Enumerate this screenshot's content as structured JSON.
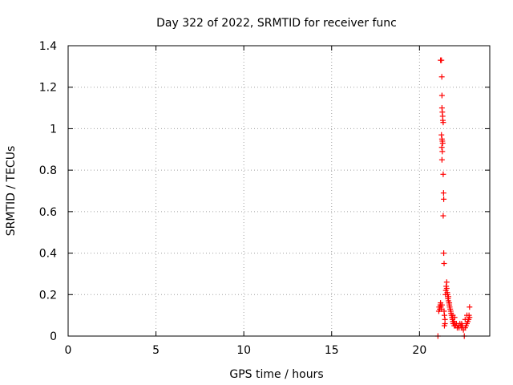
{
  "chart_data": {
    "type": "scatter",
    "title": "Day 322 of 2022, SRMTID for receiver func",
    "xlabel": "GPS time / hours",
    "ylabel": "SRMTID / TECUs",
    "xlim": [
      0,
      24
    ],
    "ylim": [
      0,
      1.4
    ],
    "xticks": [
      0,
      5,
      10,
      15,
      20
    ],
    "yticks": [
      0,
      0.2,
      0.4,
      0.6,
      0.8,
      1,
      1.2,
      1.4
    ],
    "xtick_labels": [
      "0",
      "5",
      "10",
      "15",
      "20"
    ],
    "ytick_labels": [
      "0",
      "0.2",
      "0.4",
      "0.6",
      "0.8",
      "1",
      "1.2",
      "1.4"
    ],
    "grid": true,
    "series": [
      {
        "name": "SRMTID",
        "color": "#ff0000",
        "marker": "plus",
        "points": [
          [
            21.05,
            0.0
          ],
          [
            21.1,
            0.12
          ],
          [
            21.12,
            0.14
          ],
          [
            21.15,
            0.13
          ],
          [
            21.18,
            0.15
          ],
          [
            21.2,
            0.16
          ],
          [
            21.22,
            0.14
          ],
          [
            21.25,
            0.13
          ],
          [
            21.28,
            0.15
          ],
          [
            21.2,
            1.33
          ],
          [
            21.25,
            1.33
          ],
          [
            21.27,
            1.25
          ],
          [
            21.28,
            1.16
          ],
          [
            21.28,
            1.1
          ],
          [
            21.3,
            1.08
          ],
          [
            21.32,
            1.06
          ],
          [
            21.33,
            1.04
          ],
          [
            21.35,
            1.03
          ],
          [
            21.25,
            0.97
          ],
          [
            21.28,
            0.95
          ],
          [
            21.3,
            0.94
          ],
          [
            21.32,
            0.93
          ],
          [
            21.27,
            0.91
          ],
          [
            21.3,
            0.89
          ],
          [
            21.28,
            0.85
          ],
          [
            21.35,
            0.78
          ],
          [
            21.37,
            0.69
          ],
          [
            21.38,
            0.66
          ],
          [
            21.35,
            0.58
          ],
          [
            21.38,
            0.4
          ],
          [
            21.4,
            0.35
          ],
          [
            21.4,
            0.12
          ],
          [
            21.42,
            0.1
          ],
          [
            21.45,
            0.08
          ],
          [
            21.45,
            0.06
          ],
          [
            21.42,
            0.05
          ],
          [
            21.48,
            0.2
          ],
          [
            21.5,
            0.22
          ],
          [
            21.52,
            0.24
          ],
          [
            21.55,
            0.26
          ],
          [
            21.55,
            0.23
          ],
          [
            21.58,
            0.21
          ],
          [
            21.6,
            0.2
          ],
          [
            21.62,
            0.18
          ],
          [
            21.65,
            0.17
          ],
          [
            21.68,
            0.16
          ],
          [
            21.7,
            0.15
          ],
          [
            21.72,
            0.14
          ],
          [
            21.75,
            0.13
          ],
          [
            21.78,
            0.12
          ],
          [
            21.8,
            0.11
          ],
          [
            21.82,
            0.1
          ],
          [
            21.85,
            0.09
          ],
          [
            21.88,
            0.08
          ],
          [
            21.9,
            0.07
          ],
          [
            21.92,
            0.06
          ],
          [
            21.95,
            0.07
          ],
          [
            21.98,
            0.05
          ],
          [
            22.0,
            0.06
          ],
          [
            22.05,
            0.05
          ],
          [
            22.1,
            0.06
          ],
          [
            22.15,
            0.04
          ],
          [
            22.2,
            0.05
          ],
          [
            22.25,
            0.04
          ],
          [
            22.3,
            0.06
          ],
          [
            22.35,
            0.05
          ],
          [
            22.4,
            0.04
          ],
          [
            22.45,
            0.05
          ],
          [
            22.5,
            0.03
          ],
          [
            22.55,
            0.0
          ],
          [
            22.6,
            0.04
          ],
          [
            22.65,
            0.05
          ],
          [
            22.7,
            0.06
          ],
          [
            22.75,
            0.07
          ],
          [
            22.8,
            0.08
          ],
          [
            22.82,
            0.1
          ],
          [
            22.85,
            0.14
          ],
          [
            22.85,
            0.09
          ],
          [
            22.7,
            0.1
          ],
          [
            22.6,
            0.08
          ],
          [
            22.4,
            0.06
          ],
          [
            22.0,
            0.09
          ],
          [
            21.9,
            0.1
          ],
          [
            21.7,
            0.16
          ],
          [
            21.65,
            0.19
          ]
        ]
      }
    ]
  }
}
